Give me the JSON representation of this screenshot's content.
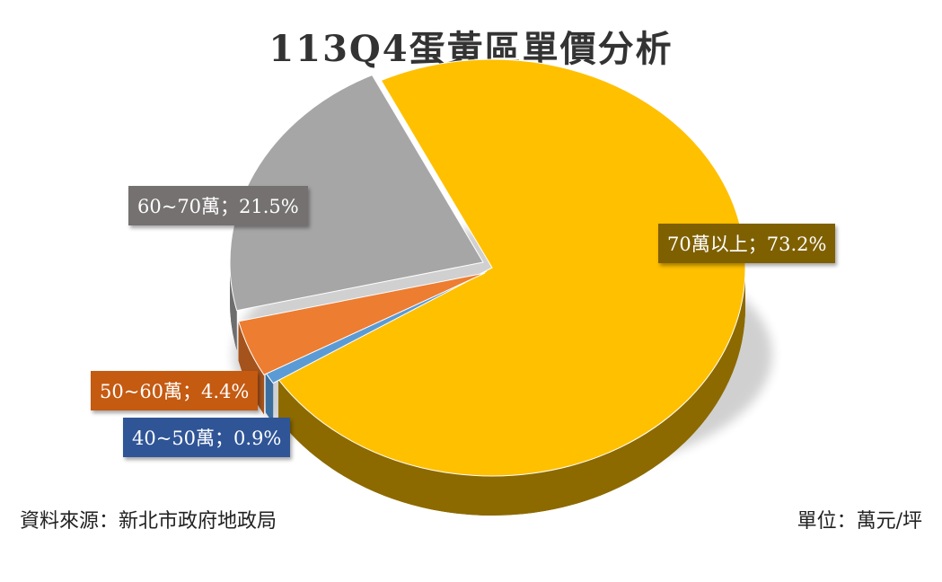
{
  "title": "113Q4蛋黃區單價分析",
  "footer": {
    "source": "資料來源：新北市政府地政局",
    "unit": "單位：萬元/坪"
  },
  "colors": {
    "slice_70_plus": "#FFC000",
    "slice_70_plus_side": "#8C6A00",
    "slice_60_70": "#A6A6A6",
    "slice_60_70_side": "#6E6E6E",
    "slice_50_60": "#ED7D31",
    "slice_50_60_side": "#A5531C",
    "slice_40_50": "#5B9BD5",
    "slice_40_50_side": "#3A6E9E",
    "label_70_plus": "#7F6000",
    "label_60_70": "#757171",
    "label_50_60": "#C55A11",
    "label_40_50": "#2F5597"
  },
  "chart_data": {
    "type": "pie",
    "title": "113Q4蛋黃區單價分析",
    "categories": [
      "70萬以上",
      "40~50萬",
      "50~60萬",
      "60~70萬"
    ],
    "values": [
      73.2,
      0.9,
      4.4,
      21.5
    ],
    "data_labels": [
      "70萬以上；73.2%",
      "40~50萬；0.9%",
      "50~60萬；4.4%",
      "60~70萬；21.5%"
    ]
  }
}
